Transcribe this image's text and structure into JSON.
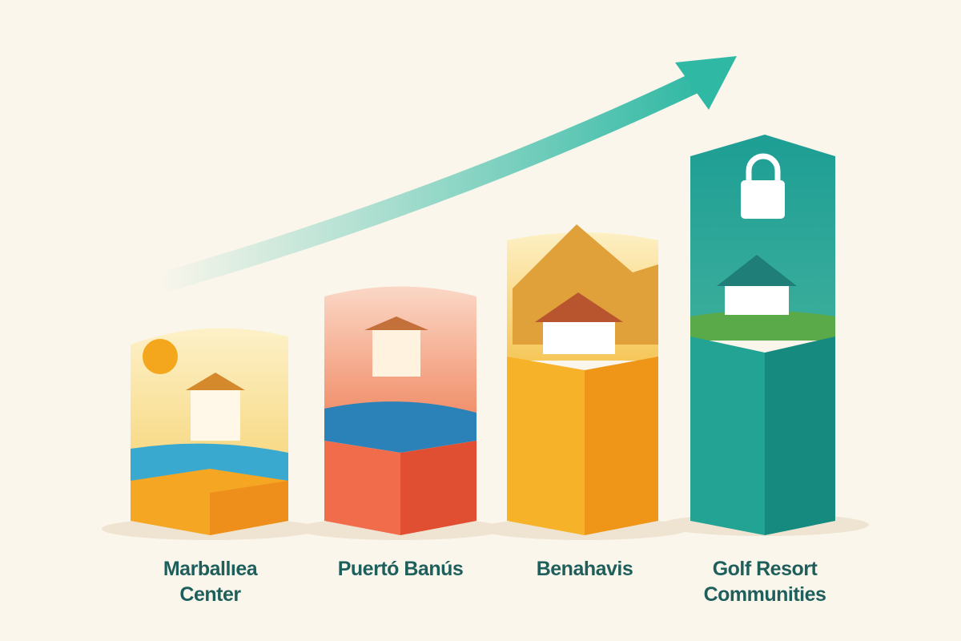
{
  "colors": {
    "background": "#fbf6ec",
    "label": "#1e5f5c",
    "arrow": "#3cbfa8",
    "bar1": "#f5a623",
    "bar2": "#ec5f3f",
    "bar3": "#f29a1c",
    "bar4": "#1f9f93"
  },
  "arrow": {
    "direction": "up-right",
    "icon": "trend-arrow-icon"
  },
  "bars": [
    {
      "line1": "Marballıea",
      "line2": "Center",
      "theme": "beach-town",
      "rank": 1
    },
    {
      "line1": "Puertó Banús",
      "line2": "",
      "theme": "marina",
      "rank": 2
    },
    {
      "line1": "Benahavis",
      "line2": "",
      "theme": "mountain-village",
      "rank": 3
    },
    {
      "line1": "Golf Resort",
      "line2": "Communities",
      "theme": "gated-golf",
      "rank": 4
    }
  ]
}
